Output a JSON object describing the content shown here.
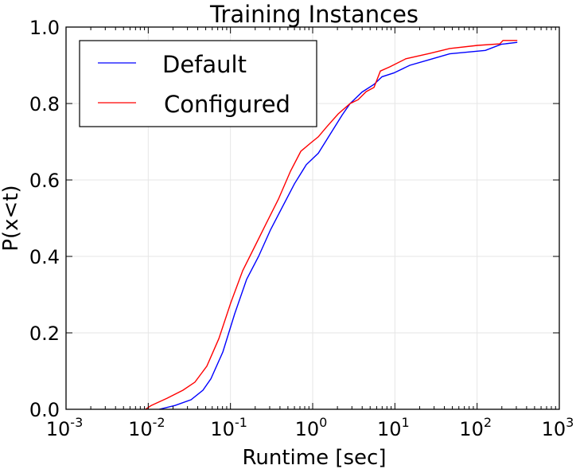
{
  "chart_data": {
    "type": "line",
    "title": "Training Instances",
    "xlabel": "Runtime [sec]",
    "ylabel": "P(x<t)",
    "xscale": "log",
    "xlim_log10": [
      -3,
      3
    ],
    "ylim": [
      0,
      1
    ],
    "grid": true,
    "legend_placement": "top-left",
    "x_ticks": [
      {
        "base": "10",
        "exp": "-3",
        "log": -3
      },
      {
        "base": "10",
        "exp": "-2",
        "log": -2
      },
      {
        "base": "10",
        "exp": "-1",
        "log": -1
      },
      {
        "base": "10",
        "exp": "0",
        "log": 0
      },
      {
        "base": "10",
        "exp": "1",
        "log": 1
      },
      {
        "base": "10",
        "exp": "2",
        "log": 2
      },
      {
        "base": "10",
        "exp": "3",
        "log": 3
      }
    ],
    "y_ticks": [
      "0.0",
      "0.2",
      "0.4",
      "0.6",
      "0.8",
      "1.0"
    ],
    "series": [
      {
        "name": "Default",
        "color": "#0000ff",
        "log10_x": [
          -1.867,
          -1.674,
          -1.48,
          -1.335,
          -1.238,
          -1.093,
          -0.948,
          -0.803,
          -0.658,
          -0.512,
          -0.367,
          -0.222,
          -0.077,
          0.069,
          0.214,
          0.359,
          0.456,
          0.601,
          0.746,
          0.843,
          0.988,
          1.182,
          1.424,
          1.666,
          2.101,
          2.295,
          2.489
        ],
        "y": [
          0,
          0.01,
          0.025,
          0.05,
          0.08,
          0.15,
          0.25,
          0.34,
          0.4,
          0.47,
          0.53,
          0.59,
          0.64,
          0.67,
          0.72,
          0.77,
          0.8,
          0.83,
          0.85,
          0.87,
          0.88,
          0.9,
          0.915,
          0.93,
          0.939,
          0.955,
          0.96
        ]
      },
      {
        "name": "Configured",
        "color": "#ff0000",
        "log10_x": [
          -2.032,
          -1.964,
          -1.771,
          -1.577,
          -1.432,
          -1.287,
          -1.141,
          -0.996,
          -0.851,
          -0.706,
          -0.561,
          -0.416,
          -0.27,
          -0.144,
          -0.028,
          0.069,
          0.166,
          0.311,
          0.456,
          0.553,
          0.65,
          0.746,
          0.824,
          0.94,
          1.133,
          1.424,
          1.666,
          2.005,
          2.276,
          2.315,
          2.489
        ],
        "y": [
          0,
          0.01,
          0.029,
          0.05,
          0.071,
          0.113,
          0.185,
          0.279,
          0.363,
          0.425,
          0.488,
          0.55,
          0.623,
          0.675,
          0.696,
          0.713,
          0.738,
          0.773,
          0.8,
          0.81,
          0.831,
          0.842,
          0.885,
          0.896,
          0.917,
          0.931,
          0.944,
          0.952,
          0.956,
          0.965,
          0.965
        ]
      }
    ]
  }
}
